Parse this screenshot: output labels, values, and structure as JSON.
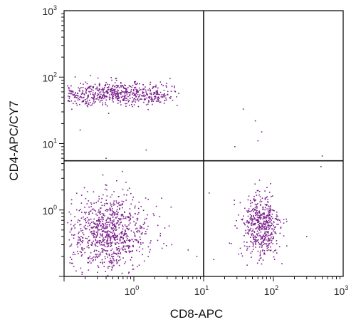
{
  "chart_data": {
    "type": "scatter",
    "xlabel": "CD8-APC",
    "ylabel": "CD4-APC/CY7",
    "x_scale": "log",
    "y_scale": "log",
    "xlim": [
      0.1,
      1000
    ],
    "ylim": [
      0.1,
      1000
    ],
    "x_ticks": [
      {
        "value": 1,
        "base": "10",
        "exp": "0"
      },
      {
        "value": 10,
        "base": "10",
        "exp": "1"
      },
      {
        "value": 100,
        "base": "10",
        "exp": "2"
      },
      {
        "value": 1000,
        "base": "10",
        "exp": "3"
      }
    ],
    "y_ticks": [
      {
        "value": 1,
        "base": "10",
        "exp": "0"
      },
      {
        "value": 10,
        "base": "10",
        "exp": "1"
      },
      {
        "value": 100,
        "base": "10",
        "exp": "2"
      },
      {
        "value": 1000,
        "base": "10",
        "exp": "3"
      }
    ],
    "gate": {
      "x": 10,
      "y": 5.5
    },
    "point_color": "#7a1f8c",
    "grid": false,
    "populations": [
      {
        "cx_log": -0.25,
        "cy_log": 1.75,
        "sx_log": 0.55,
        "sy_log": 0.09,
        "x_min_log": -0.95,
        "x_max_log": 0.65,
        "count": 620
      },
      {
        "cx_log": -0.35,
        "cy_log": -0.35,
        "sx_log": 0.28,
        "sy_log": 0.28,
        "x_min_log": -0.95,
        "x_max_log": 0.7,
        "count": 900
      },
      {
        "cx_log": 1.82,
        "cy_log": -0.25,
        "sx_log": 0.14,
        "sy_log": 0.25,
        "x_min_log": 1.05,
        "x_max_log": 2.7,
        "count": 520
      }
    ],
    "sparse_points": [
      {
        "x": 1.5,
        "y": 8
      },
      {
        "x": 0.4,
        "y": 6
      },
      {
        "x": 0.17,
        "y": 16
      },
      {
        "x": 28,
        "y": 9
      },
      {
        "x": 37,
        "y": 33
      },
      {
        "x": 55,
        "y": 22
      },
      {
        "x": 68,
        "y": 15
      },
      {
        "x": 60,
        "y": 11
      },
      {
        "x": 480,
        "y": 4.5
      },
      {
        "x": 500,
        "y": 6.5
      },
      {
        "x": 12,
        "y": 1.8
      },
      {
        "x": 14,
        "y": 0.18
      },
      {
        "x": 8,
        "y": 0.2
      },
      {
        "x": 6,
        "y": 0.25
      },
      {
        "x": 300,
        "y": 0.4
      },
      {
        "x": 3.5,
        "y": 0.3
      },
      {
        "x": 2.5,
        "y": 1.5
      }
    ]
  }
}
